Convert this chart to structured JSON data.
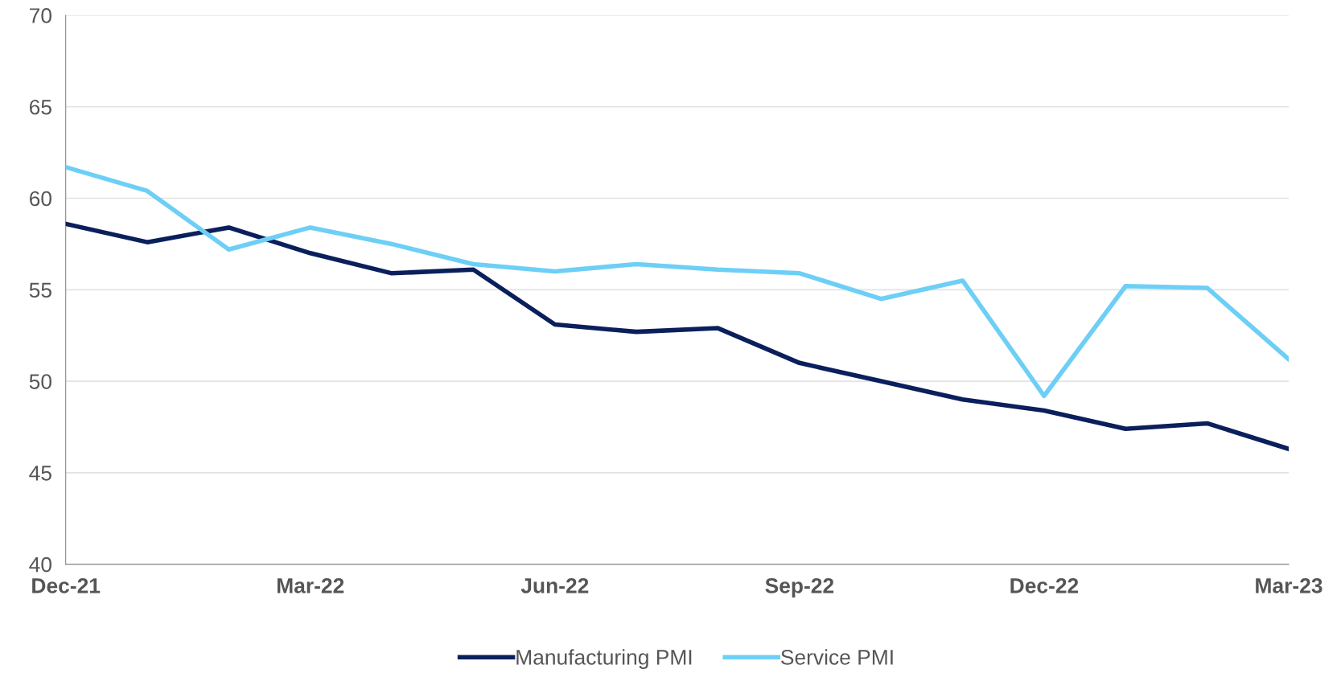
{
  "chart_data": {
    "type": "line",
    "categories": [
      "Dec-21",
      null,
      null,
      "Mar-22",
      null,
      null,
      "Jun-22",
      null,
      null,
      "Sep-22",
      null,
      null,
      "Dec-22",
      null,
      null,
      "Mar-23"
    ],
    "series": [
      {
        "name": "Manufacturing PMI",
        "color": "#0a1f5c",
        "values": [
          58.6,
          57.6,
          58.4,
          57.0,
          55.9,
          56.1,
          53.1,
          52.7,
          52.9,
          51.0,
          50.0,
          49.0,
          48.4,
          47.4,
          47.7,
          46.3
        ]
      },
      {
        "name": "Service PMI",
        "color": "#6dcff6",
        "values": [
          61.7,
          60.4,
          57.2,
          58.4,
          57.5,
          56.4,
          56.0,
          56.4,
          56.1,
          55.9,
          54.5,
          55.5,
          49.2,
          55.2,
          55.1,
          51.2
        ]
      }
    ],
    "ylim": [
      40,
      70
    ],
    "yticks": [
      40,
      45,
      50,
      55,
      60,
      65,
      70
    ],
    "grid": "y",
    "legend": "bottom",
    "marker": "none",
    "line_style": "solid"
  }
}
